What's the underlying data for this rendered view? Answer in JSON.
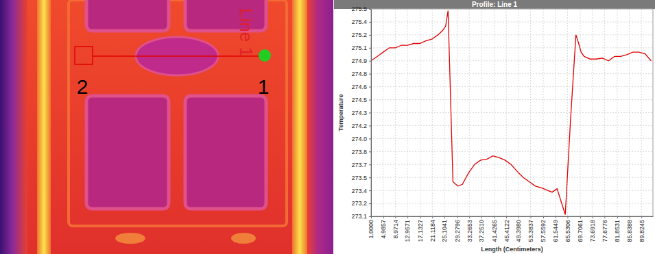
{
  "chart_data": {
    "type": "line",
    "title": "Profile: Line 1",
    "x_label": "Length (Centimeters)",
    "y_label": "Temperature",
    "x": [
      1,
      3,
      5,
      7,
      9,
      11,
      13,
      15,
      17,
      19,
      21,
      23,
      24.5,
      25.5,
      26.3,
      27.9,
      29.5,
      31,
      33,
      35,
      37,
      39,
      41,
      43,
      45,
      47,
      49,
      51,
      53,
      55,
      57,
      59,
      60.5,
      62.1,
      64.8,
      66.5,
      68.3,
      69.2,
      70,
      71,
      73,
      75,
      77,
      79,
      81,
      83,
      85,
      87,
      89,
      91,
      93
    ],
    "values": [
      274.9,
      274.95,
      275.0,
      275.05,
      275.05,
      275.08,
      275.08,
      275.1,
      275.1,
      275.13,
      275.15,
      275.2,
      275.25,
      275.3,
      275.48,
      273.5,
      273.45,
      273.47,
      273.6,
      273.7,
      273.75,
      273.76,
      273.8,
      273.78,
      273.75,
      273.7,
      273.62,
      273.55,
      273.5,
      273.45,
      273.43,
      273.4,
      273.38,
      273.42,
      273.12,
      274.2,
      275.2,
      275.1,
      275.0,
      274.95,
      274.92,
      274.92,
      274.93,
      274.9,
      274.95,
      274.95,
      274.97,
      275.0,
      275.0,
      274.98,
      274.9
    ],
    "color": "#e00000",
    "xlim": [
      1,
      93.6
    ],
    "xticks": [
      {
        "value": 1,
        "label": "1.0000"
      },
      4.9857,
      8.9714,
      12.9571,
      17.1327,
      21.1184,
      25.1041,
      29.2796,
      33.2653,
      {
        "value": 37.251,
        "label": "37.2510"
      },
      41.4265,
      45.4122,
      {
        "value": 49.398,
        "label": "49.3980"
      },
      53.3837,
      57.5592,
      61.5449,
      65.5306,
      69.7061,
      73.6918,
      77.6776,
      81.8531,
      85.8388,
      89.8245
    ],
    "ylim": [
      273.1,
      275.5
    ],
    "yticks": [
      273.1,
      {
        "value": 273.25,
        "label": "273.2"
      },
      273.4,
      {
        "value": 273.55,
        "label": "273.5"
      },
      273.7,
      {
        "value": 273.85,
        "label": "273.8"
      },
      {
        "value": 274,
        "label": "274.0"
      },
      {
        "value": 274.15,
        "label": "274.2"
      },
      274.3,
      {
        "value": 274.45,
        "label": "274.5"
      },
      274.6,
      {
        "value": 274.75,
        "label": "274.8"
      },
      274.9,
      {
        "value": 275.05,
        "label": "275.1"
      },
      275.2,
      {
        "value": 275.35,
        "label": "275.4"
      },
      275.5
    ],
    "grid": true
  },
  "thermal_image": {
    "line_label": "Line 1",
    "point_labels": [
      "1",
      "2"
    ]
  }
}
